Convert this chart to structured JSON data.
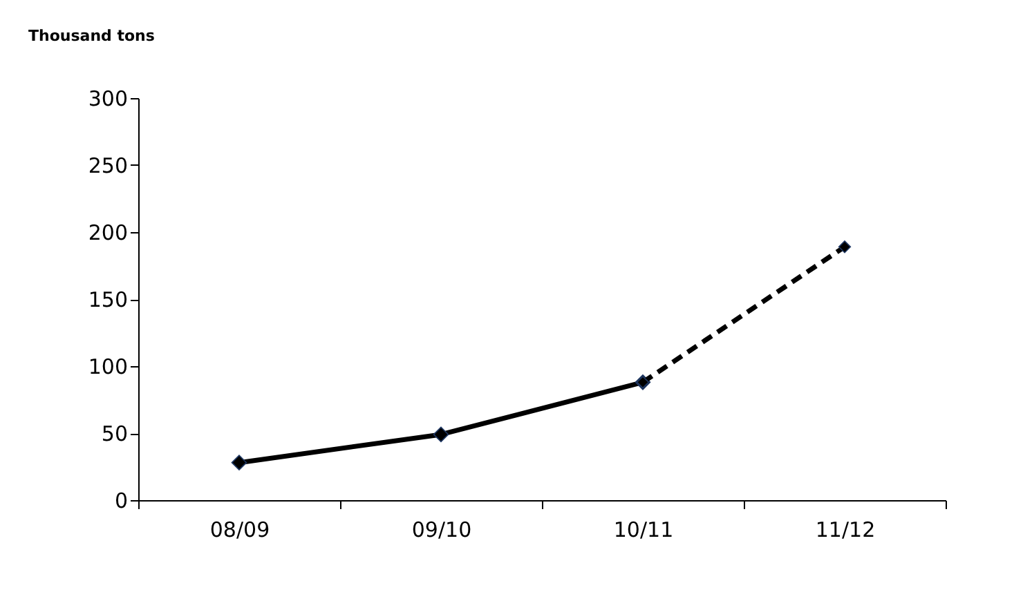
{
  "chart_data": {
    "type": "line",
    "ylabel": "Thousand tons",
    "categories": [
      "08/09",
      "09/10",
      "10/11",
      "11/12"
    ],
    "series": [
      {
        "color": "#000000",
        "values": [
          28,
          49,
          88,
          null
        ],
        "line_style": "solid"
      },
      {
        "color": "#000000",
        "values": [
          null,
          null,
          88,
          189
        ],
        "line_style": "dashed"
      }
    ],
    "ylim": [
      0,
      300
    ],
    "yticks": [
      0,
      50,
      100,
      150,
      200,
      250,
      300
    ],
    "grid": false,
    "marker": "diamond"
  }
}
